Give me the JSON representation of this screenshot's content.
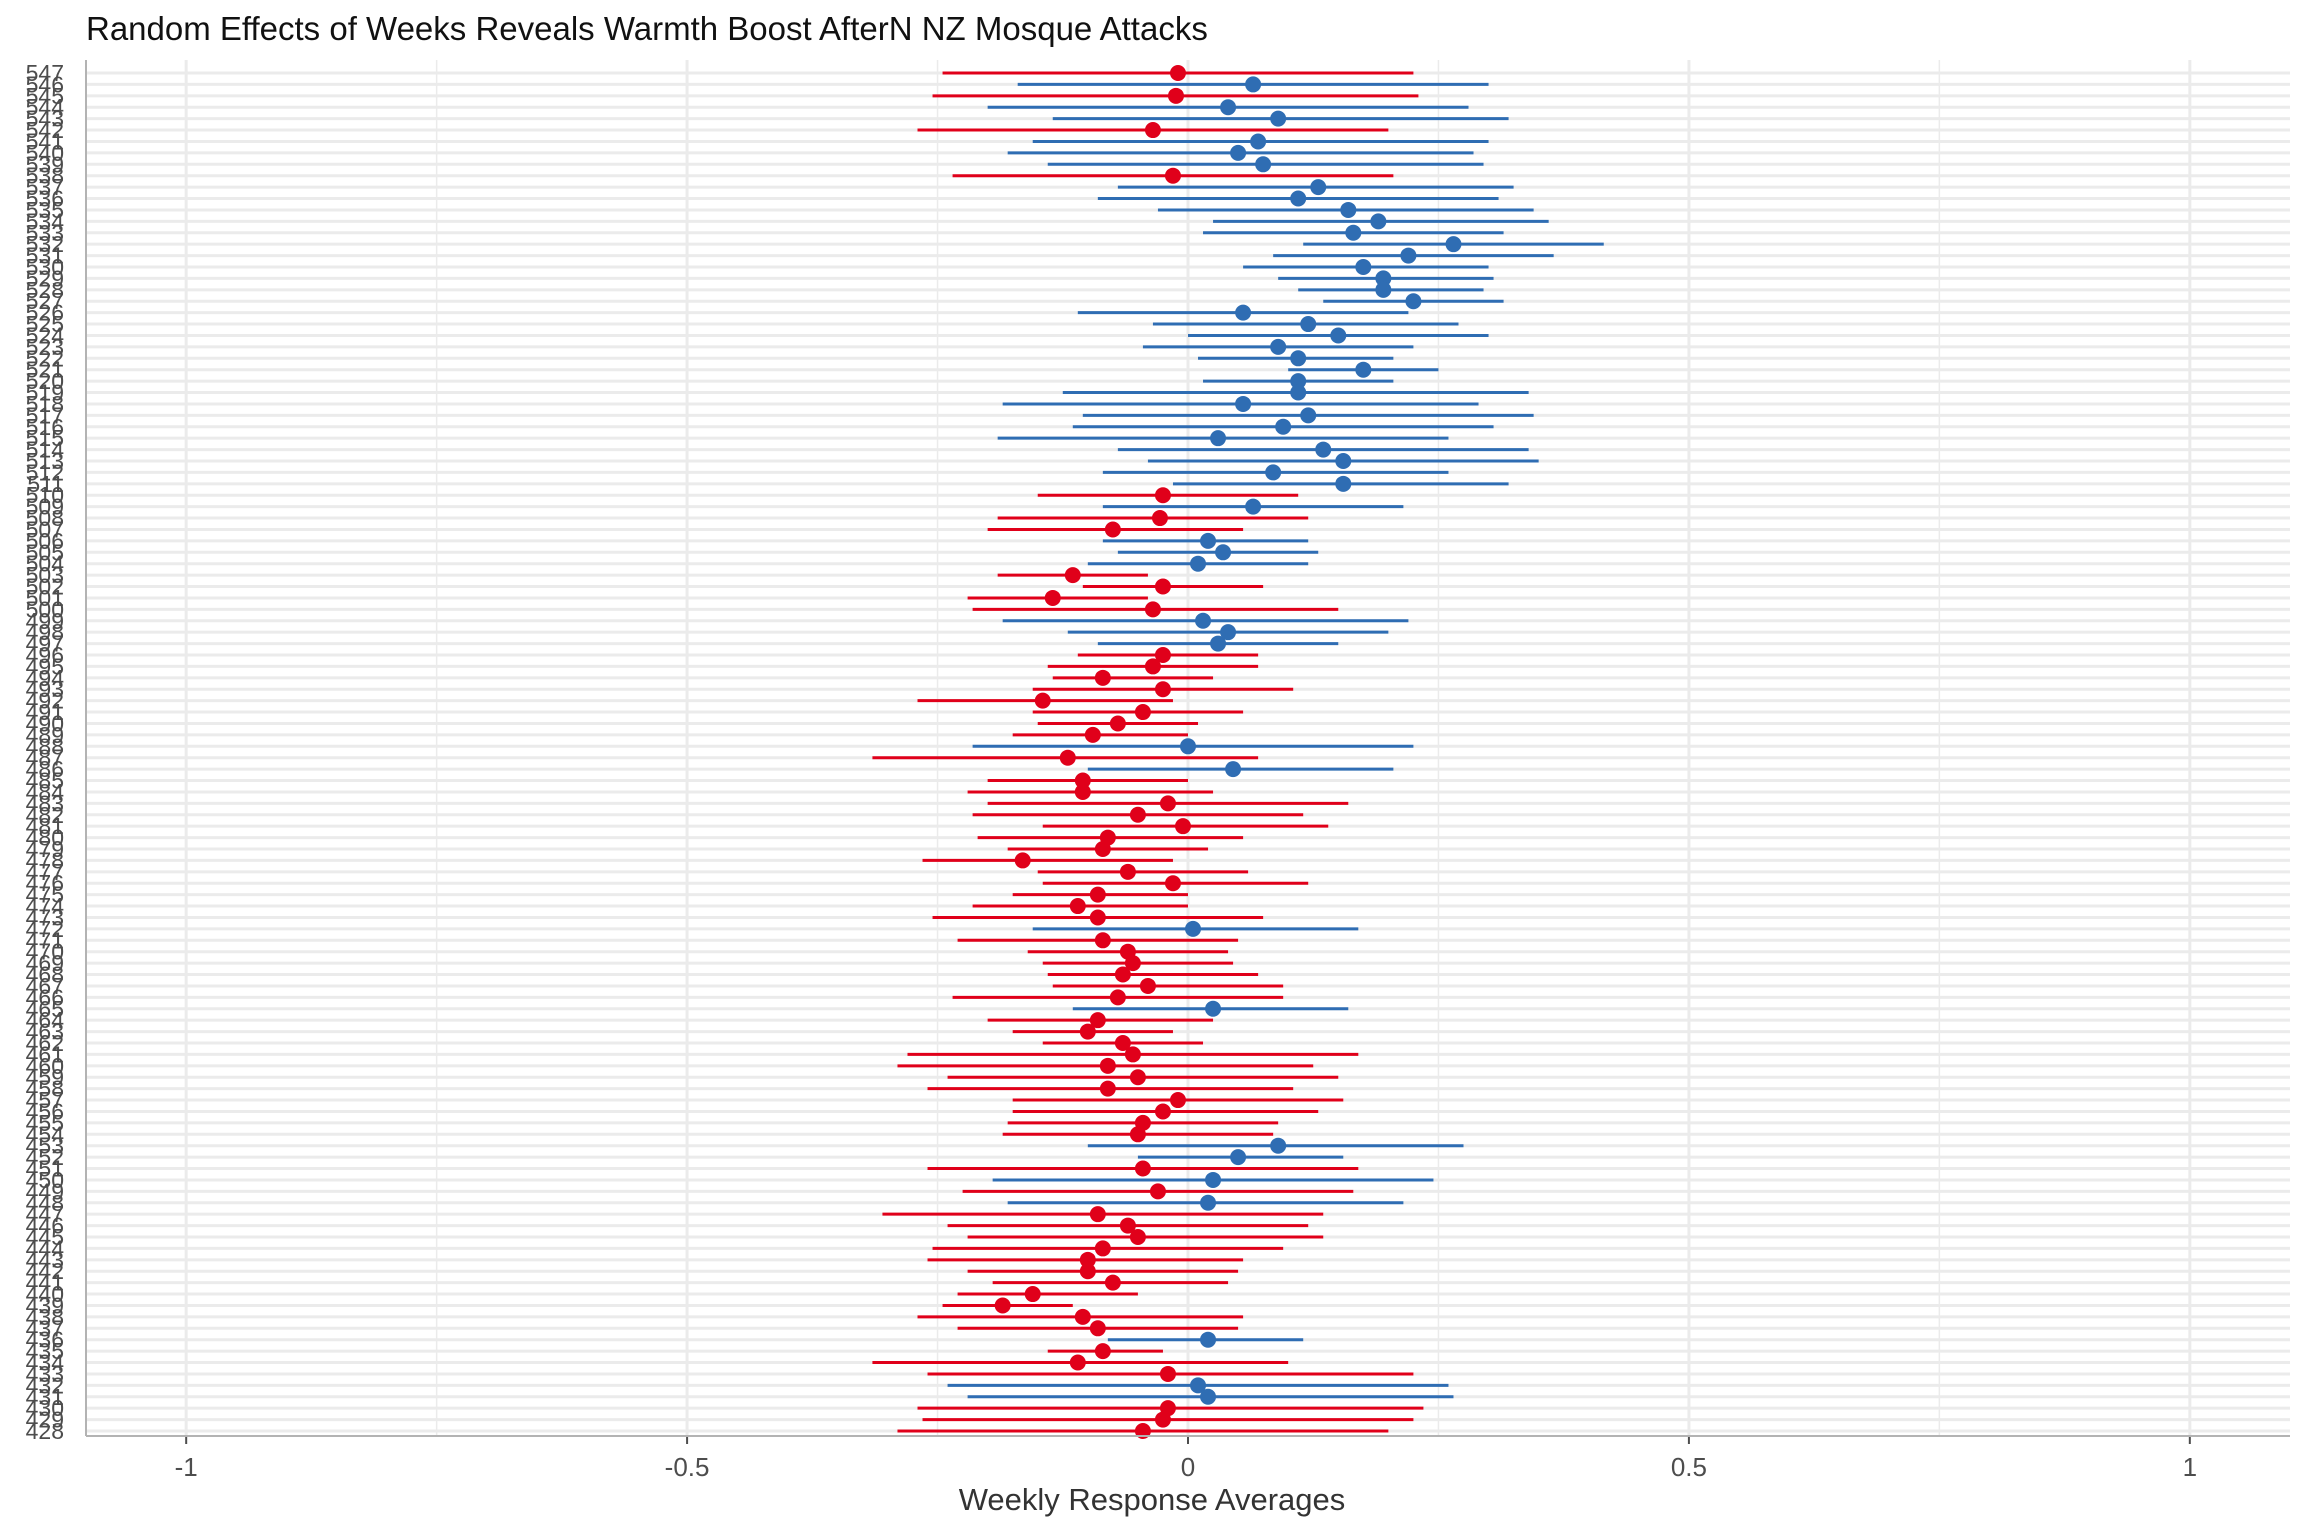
{
  "chart_data": {
    "type": "scatter",
    "title": "Random Effects of Weeks Reveals Warmth Boost AfterN NZ Mosque Attacks",
    "xlabel": "Weekly Response Averages",
    "ylabel": "",
    "xlim": [
      -1.1,
      1.1
    ],
    "x_ticks": [
      -1,
      -0.5,
      0,
      0.5,
      1
    ],
    "x_tick_labels": [
      "-1",
      "-0.5",
      "0",
      "0.5",
      "1"
    ],
    "grid": true,
    "legend": "none",
    "colors": {
      "negative": "#e0001a",
      "positive": "#2f6db3",
      "grid": "#ebebeb"
    },
    "weeks": [
      547,
      546,
      545,
      544,
      543,
      542,
      541,
      540,
      539,
      538,
      537,
      536,
      535,
      534,
      533,
      532,
      531,
      530,
      529,
      528,
      527,
      526,
      525,
      524,
      523,
      522,
      521,
      520,
      519,
      518,
      517,
      516,
      515,
      514,
      513,
      512,
      511,
      510,
      509,
      508,
      507,
      506,
      505,
      504,
      503,
      502,
      501,
      500,
      499,
      498,
      497,
      496,
      495,
      494,
      493,
      492,
      491,
      490,
      489,
      488,
      487,
      486,
      485,
      484,
      483,
      482,
      481,
      480,
      479,
      478,
      477,
      476,
      475,
      474,
      473,
      472,
      471,
      470,
      469,
      468,
      467,
      466,
      465,
      464,
      463,
      462,
      461,
      460,
      459,
      458,
      457,
      456,
      455,
      454,
      453,
      452,
      451,
      450,
      449,
      448,
      447,
      446,
      445,
      444,
      443,
      442,
      441,
      440,
      439,
      438,
      437,
      436,
      435,
      434,
      433,
      432,
      431,
      430,
      429,
      428
    ],
    "estimate": [
      -0.01,
      0.065,
      -0.012,
      0.04,
      0.09,
      -0.035,
      0.07,
      0.05,
      0.075,
      -0.015,
      0.13,
      0.11,
      0.16,
      0.19,
      0.165,
      0.265,
      0.22,
      0.175,
      0.195,
      0.195,
      0.225,
      0.055,
      0.12,
      0.15,
      0.09,
      0.11,
      0.175,
      0.11,
      0.11,
      0.055,
      0.12,
      0.095,
      0.03,
      0.135,
      0.155,
      0.085,
      0.155,
      -0.025,
      0.065,
      -0.028,
      -0.075,
      0.02,
      0.035,
      0.01,
      -0.115,
      -0.025,
      -0.135,
      -0.035,
      0.015,
      0.04,
      0.03,
      -0.025,
      -0.035,
      -0.085,
      -0.025,
      -0.145,
      -0.045,
      -0.07,
      -0.095,
      0.0,
      -0.12,
      0.045,
      -0.105,
      -0.105,
      -0.02,
      -0.05,
      -0.005,
      -0.08,
      -0.085,
      -0.165,
      -0.06,
      -0.015,
      -0.09,
      -0.11,
      -0.09,
      0.005,
      -0.085,
      -0.06,
      -0.055,
      -0.065,
      -0.04,
      -0.07,
      0.025,
      -0.09,
      -0.1,
      -0.065,
      -0.055,
      -0.08,
      -0.05,
      -0.08,
      -0.01,
      -0.025,
      -0.045,
      -0.05,
      0.09,
      0.05,
      -0.045,
      0.025,
      -0.03,
      0.02,
      -0.09,
      -0.06,
      -0.05,
      -0.085,
      -0.1,
      -0.1,
      -0.075,
      -0.155,
      -0.185,
      -0.105,
      -0.09,
      0.02,
      -0.085,
      -0.11,
      -0.02,
      0.01,
      0.02,
      -0.02,
      -0.025,
      -0.045
    ],
    "lower": [
      -0.245,
      -0.17,
      -0.255,
      -0.2,
      -0.135,
      -0.27,
      -0.155,
      -0.18,
      -0.14,
      -0.235,
      -0.07,
      -0.09,
      -0.03,
      0.025,
      0.015,
      0.115,
      0.085,
      0.055,
      0.09,
      0.11,
      0.135,
      -0.11,
      -0.035,
      0.0,
      -0.045,
      0.01,
      0.1,
      0.015,
      -0.125,
      -0.185,
      -0.105,
      -0.115,
      -0.19,
      -0.07,
      -0.04,
      -0.085,
      -0.015,
      -0.15,
      -0.085,
      -0.19,
      -0.2,
      -0.085,
      -0.07,
      -0.1,
      -0.19,
      -0.105,
      -0.22,
      -0.215,
      -0.185,
      -0.12,
      -0.09,
      -0.11,
      -0.14,
      -0.135,
      -0.155,
      -0.27,
      -0.155,
      -0.15,
      -0.175,
      -0.215,
      -0.315,
      -0.1,
      -0.2,
      -0.22,
      -0.2,
      -0.215,
      -0.145,
      -0.21,
      -0.18,
      -0.265,
      -0.15,
      -0.145,
      -0.175,
      -0.215,
      -0.255,
      -0.155,
      -0.23,
      -0.16,
      -0.145,
      -0.14,
      -0.135,
      -0.235,
      -0.115,
      -0.2,
      -0.175,
      -0.145,
      -0.28,
      -0.29,
      -0.24,
      -0.26,
      -0.175,
      -0.175,
      -0.18,
      -0.185,
      -0.1,
      -0.05,
      -0.26,
      -0.195,
      -0.225,
      -0.18,
      -0.305,
      -0.24,
      -0.22,
      -0.255,
      -0.26,
      -0.22,
      -0.195,
      -0.23,
      -0.245,
      -0.27,
      -0.23,
      -0.08,
      -0.14,
      -0.315,
      -0.26,
      -0.24,
      -0.22,
      -0.27,
      -0.265,
      -0.29
    ],
    "upper": [
      0.225,
      0.3,
      0.23,
      0.28,
      0.32,
      0.2,
      0.3,
      0.285,
      0.295,
      0.205,
      0.325,
      0.31,
      0.345,
      0.36,
      0.315,
      0.415,
      0.365,
      0.3,
      0.305,
      0.295,
      0.315,
      0.22,
      0.27,
      0.3,
      0.225,
      0.205,
      0.25,
      0.205,
      0.34,
      0.29,
      0.345,
      0.305,
      0.26,
      0.34,
      0.35,
      0.26,
      0.32,
      0.11,
      0.215,
      0.12,
      0.055,
      0.12,
      0.13,
      0.12,
      -0.04,
      0.075,
      -0.04,
      0.15,
      0.22,
      0.2,
      0.15,
      0.07,
      0.07,
      0.025,
      0.105,
      -0.015,
      0.055,
      0.01,
      0.0,
      0.225,
      0.07,
      0.205,
      0.0,
      0.025,
      0.16,
      0.115,
      0.14,
      0.055,
      0.02,
      -0.015,
      0.06,
      0.12,
      0.0,
      0.0,
      0.075,
      0.17,
      0.05,
      0.04,
      0.045,
      0.07,
      0.095,
      0.095,
      0.16,
      0.025,
      -0.015,
      0.015,
      0.17,
      0.125,
      0.15,
      0.105,
      0.155,
      0.13,
      0.09,
      0.085,
      0.275,
      0.155,
      0.17,
      0.245,
      0.165,
      0.215,
      0.135,
      0.12,
      0.135,
      0.095,
      0.055,
      0.05,
      0.04,
      -0.05,
      -0.115,
      0.055,
      0.05,
      0.115,
      -0.025,
      0.1,
      0.225,
      0.26,
      0.265,
      0.235,
      0.225,
      0.2
    ]
  }
}
